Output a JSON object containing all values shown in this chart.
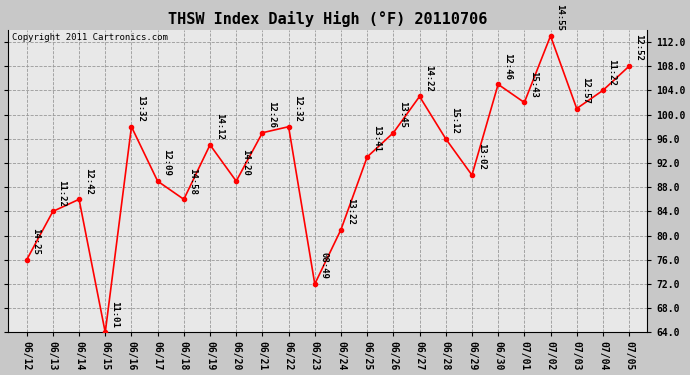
{
  "title": "THSW Index Daily High (°F) 20110706",
  "copyright": "Copyright 2011 Cartronics.com",
  "x_labels": [
    "06/12",
    "06/13",
    "06/14",
    "06/15",
    "06/16",
    "06/17",
    "06/18",
    "06/19",
    "06/20",
    "06/21",
    "06/22",
    "06/23",
    "06/24",
    "06/25",
    "06/26",
    "06/27",
    "06/28",
    "06/29",
    "06/30",
    "07/01",
    "07/02",
    "07/03",
    "07/04",
    "07/05"
  ],
  "y_values": [
    76.0,
    84.0,
    86.0,
    64.0,
    98.0,
    89.0,
    86.0,
    95.0,
    89.0,
    97.0,
    98.0,
    72.0,
    81.0,
    93.0,
    97.0,
    103.0,
    96.0,
    90.0,
    105.0,
    102.0,
    113.0,
    101.0,
    104.0,
    108.0
  ],
  "time_labels": [
    "14:25",
    "11:22",
    "12:42",
    "11:01",
    "13:32",
    "12:09",
    "14:58",
    "14:12",
    "14:20",
    "12:26",
    "12:32",
    "08:49",
    "13:22",
    "13:41",
    "13:45",
    "14:22",
    "15:12",
    "13:02",
    "12:46",
    "15:43",
    "14:55",
    "12:57",
    "11:22",
    "12:52"
  ],
  "ylim": [
    64.0,
    114.0
  ],
  "yticks": [
    64.0,
    68.0,
    72.0,
    76.0,
    80.0,
    84.0,
    88.0,
    92.0,
    96.0,
    100.0,
    104.0,
    108.0,
    112.0
  ],
  "line_color": "red",
  "marker_color": "red",
  "bg_color": "#c8c8c8",
  "plot_bg_color": "#e8e8e8",
  "title_fontsize": 11,
  "copyright_fontsize": 6.5,
  "label_fontsize": 6.5,
  "tick_fontsize": 7.0
}
